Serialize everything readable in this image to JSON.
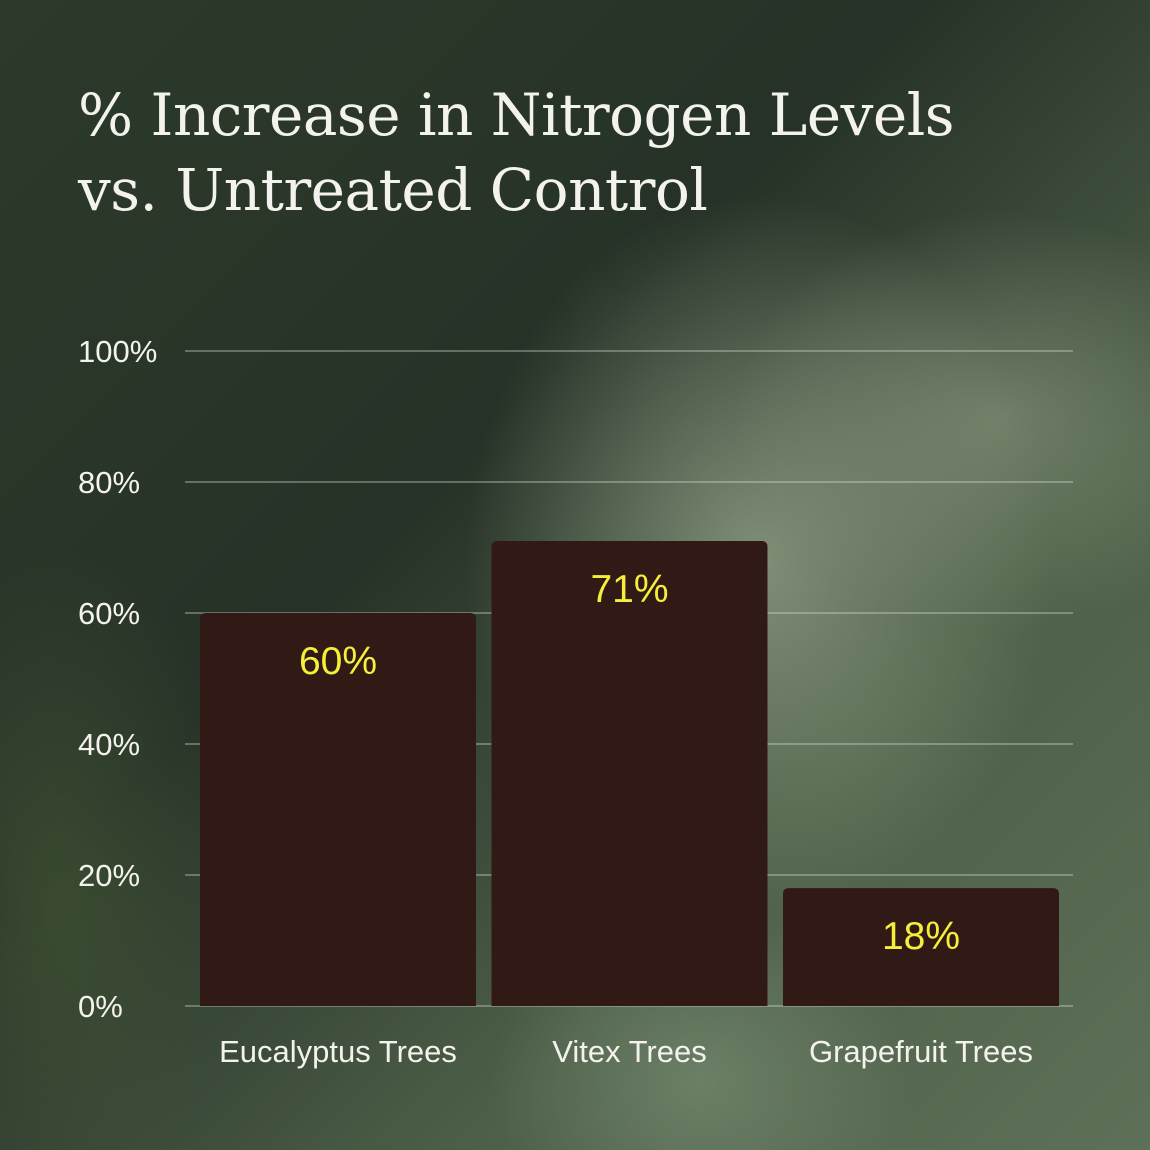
{
  "chart_data": {
    "type": "bar",
    "title_lines": [
      "% Increase in Nitrogen Levels",
      "vs. Untreated Control"
    ],
    "categories": [
      "Eucalyptus Trees",
      "Vitex Trees",
      "Grapefruit Trees"
    ],
    "values": [
      60,
      71,
      18
    ],
    "data_labels": [
      "60%",
      "71%",
      "18%"
    ],
    "y_ticks": [
      0,
      20,
      40,
      60,
      80,
      100
    ],
    "y_tick_labels": [
      "0%",
      "20%",
      "40%",
      "60%",
      "80%",
      "100%"
    ],
    "ylim": [
      0,
      100
    ],
    "grid": true
  },
  "colors": {
    "bar": "#311a15",
    "data_label": "#f5ef3a",
    "axis_text": "#f4f2ec",
    "gridline": "rgba(225,230,215,0.45)"
  }
}
